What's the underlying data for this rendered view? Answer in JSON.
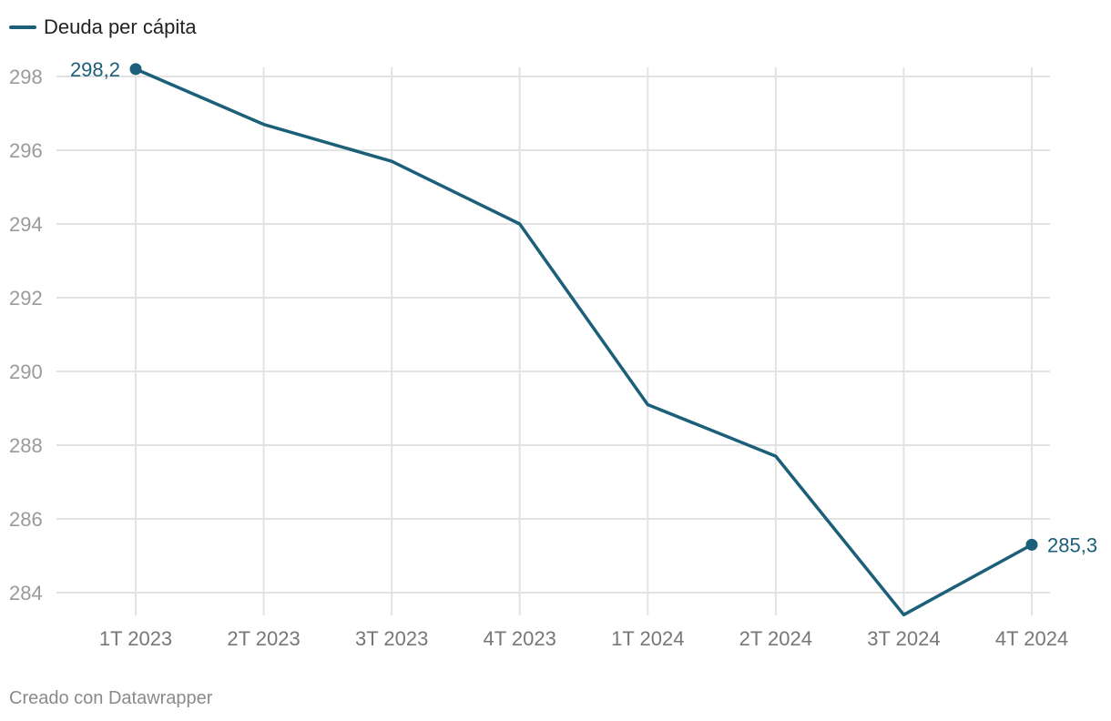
{
  "legend": {
    "label": "Deuda per cápita"
  },
  "footer": {
    "credit": "Creado con Datawrapper"
  },
  "colors": {
    "series": "#1b5f78",
    "grid": "#e3e3e3",
    "tick_text": "#9a9a9a"
  },
  "chart_data": {
    "type": "line",
    "categories": [
      "1T 2023",
      "2T 2023",
      "3T 2023",
      "4T 2023",
      "1T 2024",
      "2T 2024",
      "3T 2024",
      "4T 2024"
    ],
    "series": [
      {
        "name": "Deuda per cápita",
        "values": [
          298.2,
          296.7,
          295.7,
          294.0,
          289.1,
          287.7,
          283.4,
          285.3
        ]
      }
    ],
    "data_labels": [
      {
        "index": 0,
        "text": "298,2"
      },
      {
        "index": 7,
        "text": "285,3"
      }
    ],
    "y_ticks": [
      284,
      286,
      288,
      290,
      292,
      294,
      296,
      298
    ],
    "ylim": [
      283.4,
      298.2
    ],
    "grid": true,
    "legend_position": "top-left"
  }
}
